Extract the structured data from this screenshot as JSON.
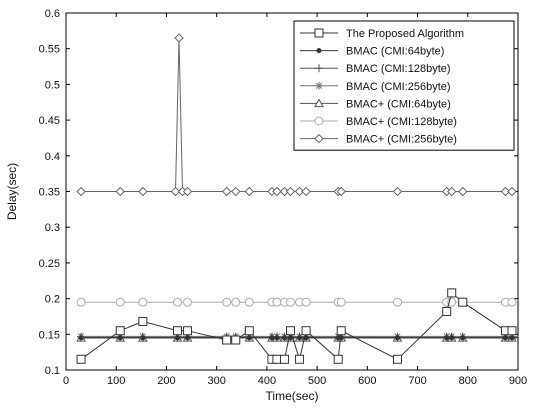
{
  "chart_data": {
    "type": "line",
    "title": "",
    "xlabel": "Time(sec)",
    "ylabel": "Delay(sec)",
    "xlim": [
      0,
      900
    ],
    "ylim": [
      0.1,
      0.6
    ],
    "xticks": [
      0,
      100,
      200,
      300,
      400,
      500,
      600,
      700,
      800,
      900
    ],
    "yticks": [
      0.1,
      0.15,
      0.2,
      0.25,
      0.3,
      0.35,
      0.4,
      0.45,
      0.5,
      0.55,
      0.6
    ],
    "ytick_labels": [
      "0.1",
      "0.15",
      "0.2",
      "0.25",
      "0.3",
      "0.35",
      "0.4",
      "0.45",
      "0.5",
      "0.55",
      "0.6"
    ],
    "grid": false,
    "legend_position": "top-right",
    "series": [
      {
        "name": "The Proposed Algorithm",
        "marker": "square",
        "color": "#333333",
        "points": [
          [
            30,
            0.115
          ],
          [
            108,
            0.155
          ],
          [
            153,
            0.168
          ],
          [
            222,
            0.155
          ],
          [
            242,
            0.155
          ],
          [
            320,
            0.142
          ],
          [
            338,
            0.142
          ],
          [
            365,
            0.155
          ],
          [
            410,
            0.115
          ],
          [
            420,
            0.115
          ],
          [
            435,
            0.115
          ],
          [
            447,
            0.155
          ],
          [
            465,
            0.115
          ],
          [
            478,
            0.155
          ],
          [
            542,
            0.115
          ],
          [
            548,
            0.155
          ],
          [
            660,
            0.115
          ],
          [
            758,
            0.182
          ],
          [
            768,
            0.208
          ],
          [
            790,
            0.195
          ],
          [
            875,
            0.155
          ],
          [
            888,
            0.155
          ]
        ]
      },
      {
        "name": "BMAC (CMI:64byte)",
        "marker": "dot",
        "color": "#333333",
        "points": [
          [
            30,
            0.145
          ],
          [
            900,
            0.145
          ]
        ]
      },
      {
        "name": "BMAC (CMI:128byte)",
        "marker": "plus",
        "color": "#555555",
        "points": [
          [
            30,
            0.146
          ],
          [
            900,
            0.146
          ]
        ]
      },
      {
        "name": "BMAC (CMI:256byte)",
        "marker": "star",
        "color": "#777777",
        "points": [
          [
            30,
            0.147
          ],
          [
            900,
            0.147
          ]
        ]
      },
      {
        "name": "BMAC+ (CMI:64byte)",
        "marker": "triangle",
        "color": "#555555",
        "points": [
          [
            30,
            0.145
          ],
          [
            108,
            0.145
          ],
          [
            153,
            0.145
          ],
          [
            222,
            0.145
          ],
          [
            242,
            0.145
          ],
          [
            320,
            0.145
          ],
          [
            338,
            0.145
          ],
          [
            365,
            0.145
          ],
          [
            410,
            0.145
          ],
          [
            420,
            0.145
          ],
          [
            435,
            0.145
          ],
          [
            447,
            0.145
          ],
          [
            465,
            0.145
          ],
          [
            478,
            0.145
          ],
          [
            542,
            0.145
          ],
          [
            548,
            0.145
          ],
          [
            660,
            0.145
          ],
          [
            758,
            0.145
          ],
          [
            768,
            0.145
          ],
          [
            790,
            0.145
          ],
          [
            875,
            0.145
          ],
          [
            888,
            0.145
          ]
        ]
      },
      {
        "name": "BMAC+ (CMI:128byte)",
        "marker": "circle",
        "color": "#aaaaaa",
        "points": [
          [
            30,
            0.195
          ],
          [
            108,
            0.195
          ],
          [
            153,
            0.195
          ],
          [
            222,
            0.195
          ],
          [
            242,
            0.195
          ],
          [
            320,
            0.195
          ],
          [
            338,
            0.195
          ],
          [
            365,
            0.195
          ],
          [
            410,
            0.195
          ],
          [
            420,
            0.195
          ],
          [
            435,
            0.195
          ],
          [
            447,
            0.195
          ],
          [
            465,
            0.195
          ],
          [
            478,
            0.195
          ],
          [
            542,
            0.195
          ],
          [
            548,
            0.195
          ],
          [
            660,
            0.195
          ],
          [
            758,
            0.195
          ],
          [
            768,
            0.195
          ],
          [
            790,
            0.195
          ],
          [
            875,
            0.195
          ],
          [
            888,
            0.195
          ]
        ]
      },
      {
        "name": "BMAC+ (CMI:256byte)",
        "marker": "diamond",
        "color": "#666666",
        "points": [
          [
            30,
            0.35
          ],
          [
            108,
            0.35
          ],
          [
            153,
            0.35
          ],
          [
            218,
            0.35
          ],
          [
            225,
            0.565
          ],
          [
            232,
            0.35
          ],
          [
            242,
            0.35
          ],
          [
            320,
            0.35
          ],
          [
            338,
            0.35
          ],
          [
            365,
            0.35
          ],
          [
            410,
            0.35
          ],
          [
            420,
            0.35
          ],
          [
            435,
            0.35
          ],
          [
            447,
            0.35
          ],
          [
            465,
            0.35
          ],
          [
            478,
            0.35
          ],
          [
            542,
            0.35
          ],
          [
            548,
            0.35
          ],
          [
            660,
            0.35
          ],
          [
            758,
            0.35
          ],
          [
            768,
            0.35
          ],
          [
            790,
            0.35
          ],
          [
            875,
            0.35
          ],
          [
            888,
            0.35
          ]
        ]
      }
    ]
  }
}
